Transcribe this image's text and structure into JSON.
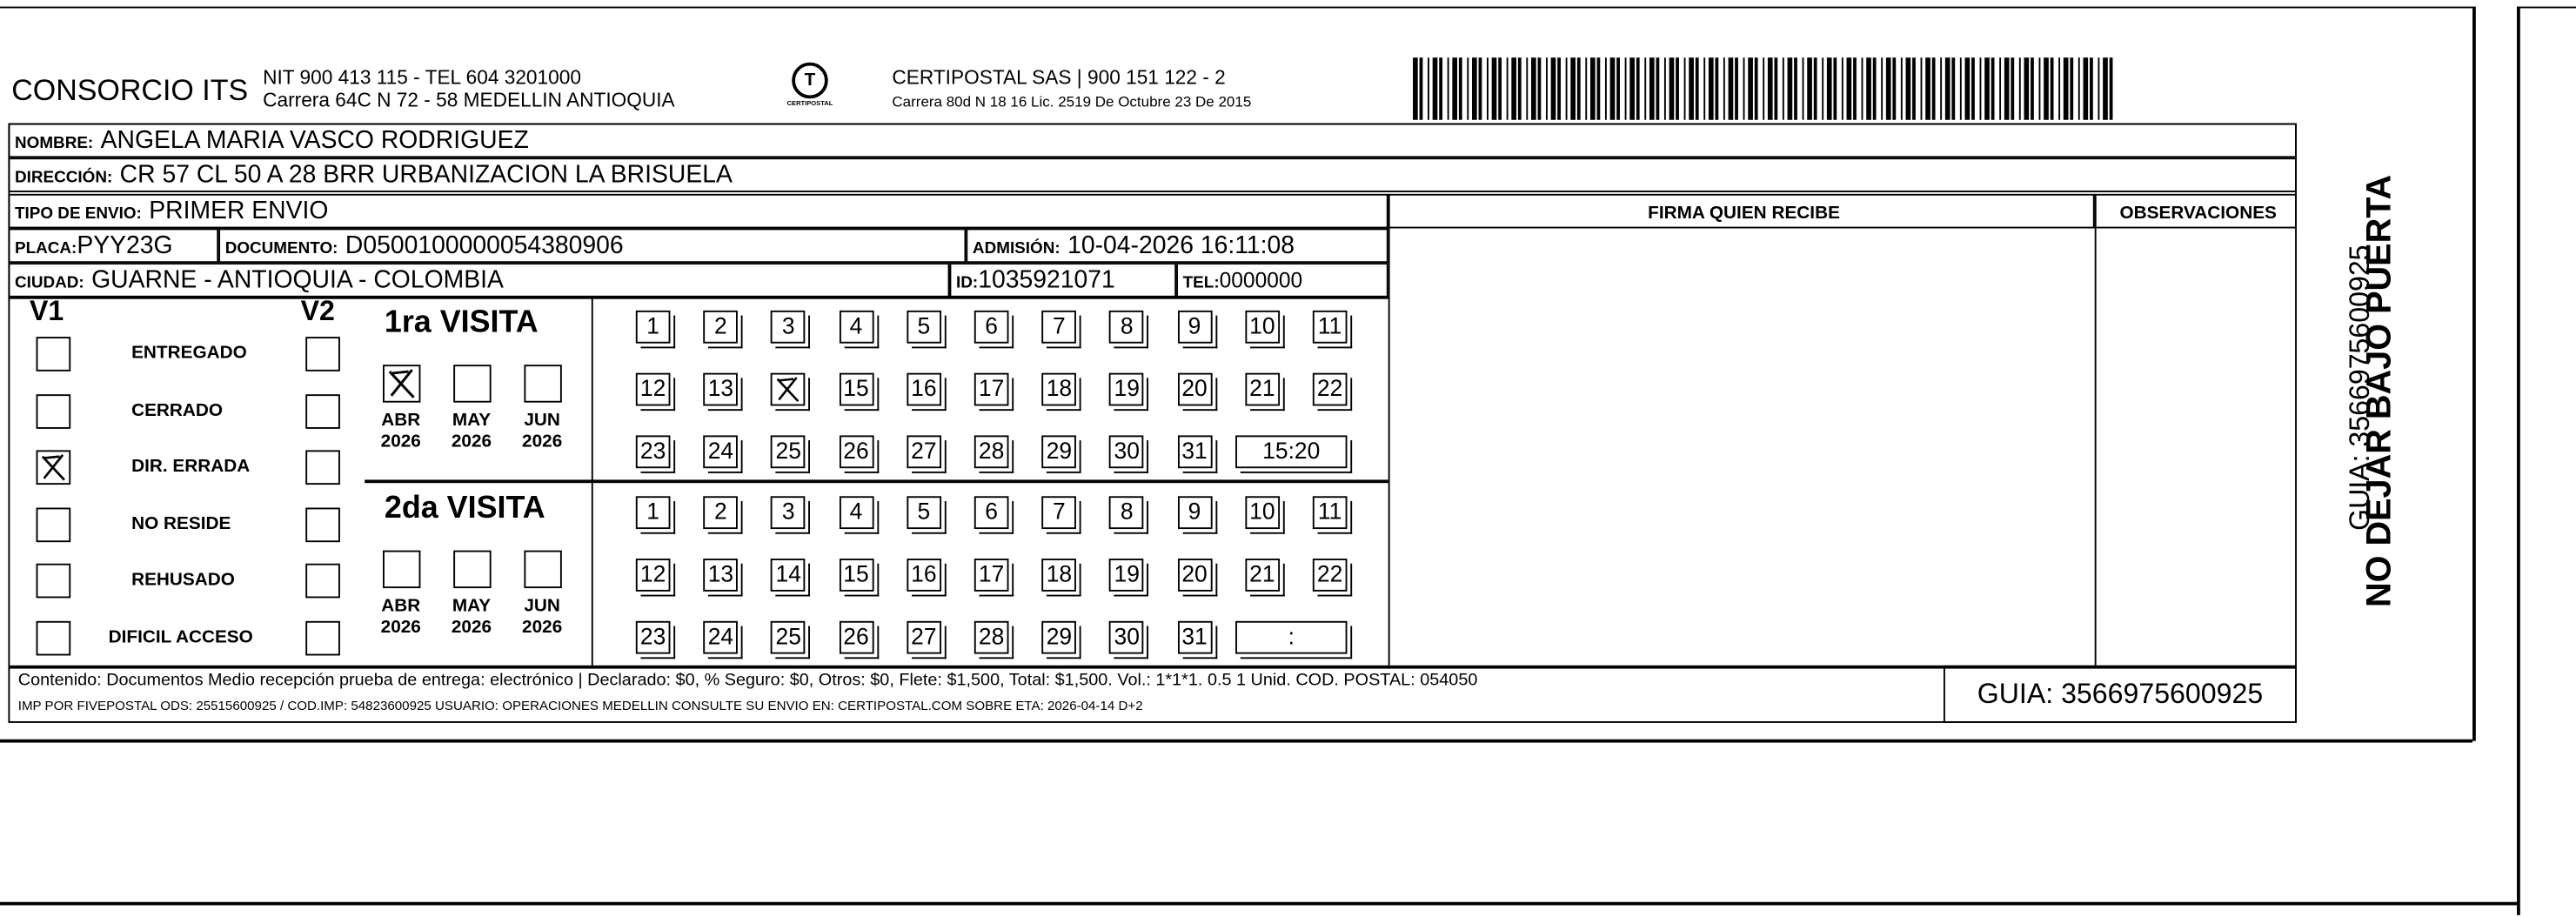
{
  "header": {
    "company": "CONSORCIO ITS",
    "nit_line": "NIT 900 413 115 - TEL 604 3201000",
    "address_line": "Carrera 64C N 72 - 58 MEDELLIN ANTIOQUIA",
    "logo_text": "CERTIPOSTAL",
    "carrier_line": "CERTIPOSTAL SAS | 900 151 122 - 2",
    "carrier_license": "Carrera 80d N 18 16  Lic. 2519 De Octubre 23 De 2015"
  },
  "fields": {
    "nombre_label": "NOMBRE:",
    "nombre": "ANGELA MARIA VASCO RODRIGUEZ",
    "direccion_label": "DIRECCIÓN:",
    "direccion": "CR 57 CL 50 A   28 BRR URBANIZACION LA BRISUELA",
    "tipo_label": "TIPO DE ENVIO:",
    "tipo": "PRIMER ENVIO",
    "placa_label": "PLACA:",
    "placa": "PYY23G",
    "documento_label": "DOCUMENTO:",
    "documento": "D0500100000054380906",
    "admision_label": "ADMISIÓN:",
    "admision": "10-04-2026 16:11:08",
    "ciudad_label": "CIUDAD:",
    "ciudad": "GUARNE - ANTIOQUIA - COLOMBIA",
    "id_label": "ID:",
    "id": "1035921071",
    "tel_label": "TEL:",
    "tel": "0000000",
    "firma_label": "FIRMA QUIEN RECIBE",
    "observaciones_label": "OBSERVACIONES"
  },
  "status": {
    "v1_label": "V1",
    "v2_label": "V2",
    "options": [
      {
        "label": "ENTREGADO",
        "v1": false
      },
      {
        "label": "CERRADO",
        "v1": false
      },
      {
        "label": "DIR. ERRADA",
        "v1": true
      },
      {
        "label": "NO RESIDE",
        "v1": false
      },
      {
        "label": "REHUSADO",
        "v1": false
      },
      {
        "label": "DIFICIL ACCESO",
        "v1": false
      }
    ]
  },
  "visits": [
    {
      "title": "1ra VISITA",
      "months": [
        {
          "m": "ABR",
          "y": "2026",
          "marked": true
        },
        {
          "m": "MAY",
          "y": "2026",
          "marked": false
        },
        {
          "m": "JUN",
          "y": "2026",
          "marked": false
        }
      ],
      "marked_day": 14,
      "time": "15:20"
    },
    {
      "title": "2da VISITA",
      "months": [
        {
          "m": "ABR",
          "y": "2026",
          "marked": false
        },
        {
          "m": "MAY",
          "y": "2026",
          "marked": false
        },
        {
          "m": "JUN",
          "y": "2026",
          "marked": false
        }
      ],
      "marked_day": null,
      "time": ":"
    }
  ],
  "footer": {
    "line1": "Contenido: Documentos Medio recepción prueba de entrega: electrónico | Declarado: $0, % Seguro: $0, Otros: $0, Flete: $1,500, Total: $1,500. Vol.: 1*1*1. 0.5  1 Unid. COD. POSTAL: 054050",
    "line2": "IMP POR FIVEPOSTAL ODS: 25515600925 / COD.IMP: 54823600925 USUARIO: OPERACIONES MEDELLIN CONSULTE SU ENVIO EN: CERTIPOSTAL.COM SOBRE ETA: 2026-04-14 D+2",
    "guia": "GUIA: 3566975600925"
  },
  "side": {
    "warning": "NO DEJAR BAJO PUERTA",
    "guia": "GUIA: 3566975600925"
  }
}
